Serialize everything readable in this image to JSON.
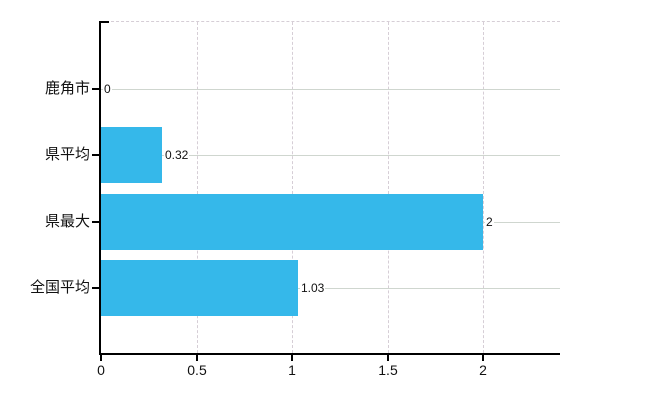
{
  "chart_data": {
    "type": "bar",
    "orientation": "horizontal",
    "title": "",
    "xlabel": "",
    "ylabel": "",
    "categories": [
      "鹿角市",
      "県平均",
      "県最大",
      "全国平均"
    ],
    "values": [
      0,
      0.32,
      2,
      1.03
    ],
    "value_labels": [
      "0",
      "0.32",
      "2",
      "1.03"
    ],
    "x_ticks": [
      0,
      0.5,
      1,
      1.5,
      2
    ],
    "x_tick_labels": [
      "0",
      "0.5",
      "1",
      "1.5",
      "2"
    ],
    "xlim": [
      0,
      2.4
    ],
    "grid": true,
    "grid_vertical_positions": [
      0.5,
      1,
      1.5,
      2
    ],
    "legend": false,
    "bar_color": "#35b8ea"
  },
  "colors": {
    "background": "#ffffff",
    "bar": "#35b8ea",
    "axis": "#000000",
    "text": "#111111",
    "grid_horizontal": "#cfd6cf",
    "grid_vertical": "#d6ced6"
  }
}
